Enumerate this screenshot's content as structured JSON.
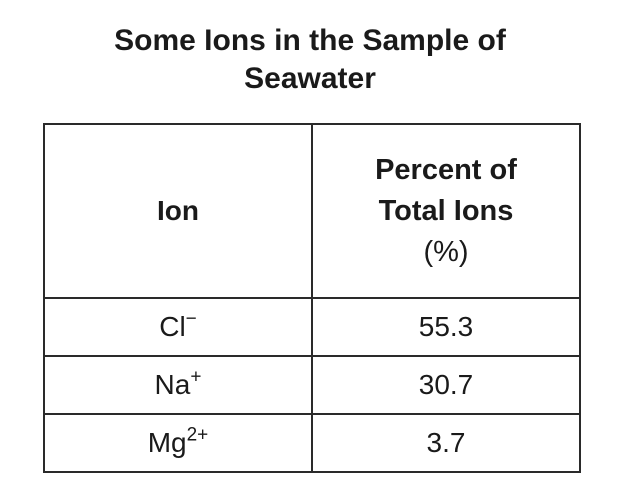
{
  "title": "Some Ions in the Sample of Seawater",
  "table": {
    "columns": [
      "Ion",
      "Percent of Total Ions"
    ],
    "unit": "(%)",
    "rows": [
      {
        "ion": "Cl",
        "charge": "−",
        "percent": 55.3
      },
      {
        "ion": "Na",
        "charge": "+",
        "percent": 30.7
      },
      {
        "ion": "Mg",
        "charge": "2+",
        "percent": 3.7
      }
    ]
  }
}
